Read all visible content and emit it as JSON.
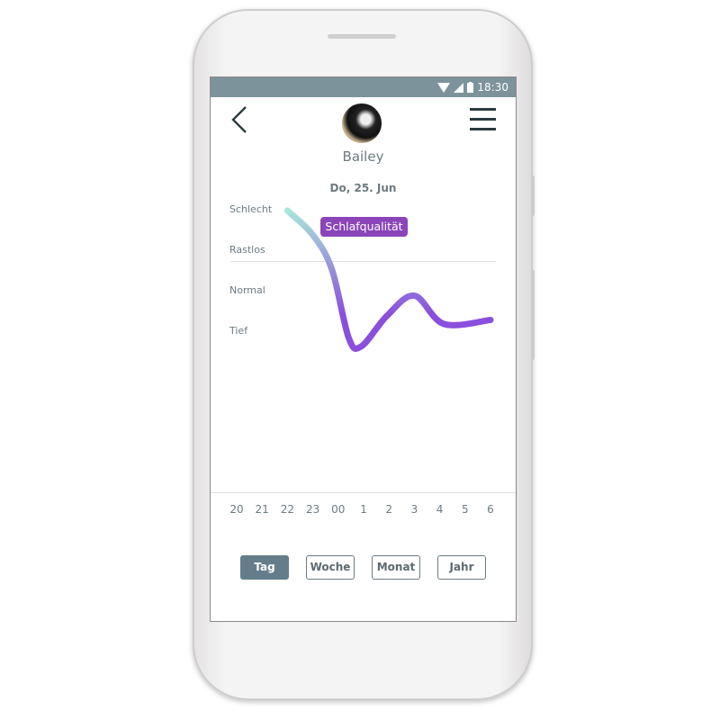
{
  "status_bar": {
    "time": "18:30",
    "icons": [
      "wifi-icon",
      "signal-icon",
      "battery-icon"
    ],
    "color": "#7d939c"
  },
  "header": {
    "back_icon": "chevron-left-icon",
    "menu_icon": "hamburger-menu-icon",
    "pet_name": "Bailey",
    "date": "Do, 25. Jun"
  },
  "badge": {
    "label": "Schlafqualität",
    "color": "#8a45b8"
  },
  "chart_data": {
    "type": "line",
    "y_categories": [
      "Tief",
      "Normal",
      "Rastlos",
      "Schlecht"
    ],
    "x_ticks": [
      "20",
      "21",
      "22",
      "23",
      "00",
      "1",
      "2",
      "3",
      "4",
      "5",
      "6"
    ],
    "ylim": [
      1,
      4
    ],
    "gradient": [
      "#a8e6da",
      "#8a4fdc"
    ],
    "points": [
      {
        "time": "22:00",
        "level": 4.0
      },
      {
        "time": "23:00",
        "level": 3.4
      },
      {
        "time": "23:45",
        "level": 2.55
      },
      {
        "time": "00:25",
        "level": 0.85
      },
      {
        "time": "00:55",
        "level": 0.65
      },
      {
        "time": "01:55",
        "level": 1.4
      },
      {
        "time": "03:00",
        "level": 1.9
      },
      {
        "time": "04:10",
        "level": 1.2
      },
      {
        "time": "06:00",
        "level": 1.3
      }
    ]
  },
  "range_buttons": [
    {
      "label": "Tag",
      "active": true
    },
    {
      "label": "Woche",
      "active": false
    },
    {
      "label": "Monat",
      "active": false
    },
    {
      "label": "Jahr",
      "active": false
    }
  ]
}
